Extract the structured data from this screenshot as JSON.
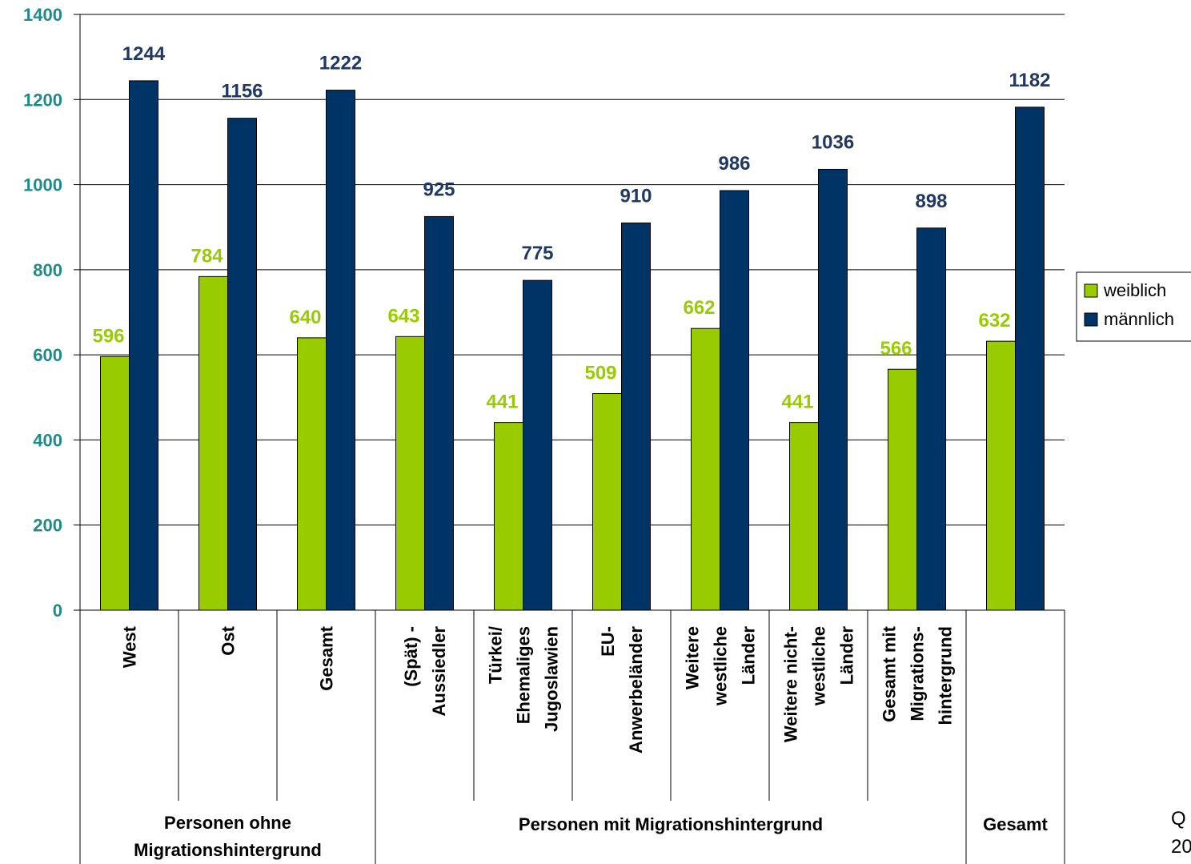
{
  "chart_data": {
    "type": "bar",
    "ylim": [
      0,
      1400
    ],
    "yticks": [
      0,
      200,
      400,
      600,
      800,
      1000,
      1200,
      1400
    ],
    "grid": true,
    "legend_position": "right",
    "categories": [
      [
        "West"
      ],
      [
        "Ost"
      ],
      [
        "Gesamt"
      ],
      [
        "(Spät) -",
        "Aussiedler"
      ],
      [
        "Türkei/",
        "Ehemaliges",
        "Jugoslawien"
      ],
      [
        "EU-",
        "Anwerbeländer"
      ],
      [
        "Weitere",
        "westliche",
        "Länder"
      ],
      [
        "Weitere nicht-",
        "westliche",
        "Länder"
      ],
      [
        "Gesamt mit",
        "Migrations-",
        "hintergrund"
      ],
      []
    ],
    "groups": [
      {
        "label": [
          "Personen ohne",
          "Migrationshintergrund"
        ],
        "start": 0,
        "end": 2
      },
      {
        "label": [
          "Personen mit Migrationshintergrund"
        ],
        "start": 3,
        "end": 8
      },
      {
        "label": [
          "Gesamt"
        ],
        "start": 9,
        "end": 9
      }
    ],
    "series": [
      {
        "name": "weiblich",
        "color": "#99cc00",
        "values": [
          596,
          784,
          640,
          643,
          441,
          509,
          662,
          441,
          566,
          632
        ]
      },
      {
        "name": "männlich",
        "color": "#003366",
        "values": [
          1244,
          1156,
          1222,
          925,
          775,
          910,
          986,
          1036,
          898,
          1182
        ]
      }
    ]
  },
  "source_text": [
    "Q",
    "20"
  ]
}
